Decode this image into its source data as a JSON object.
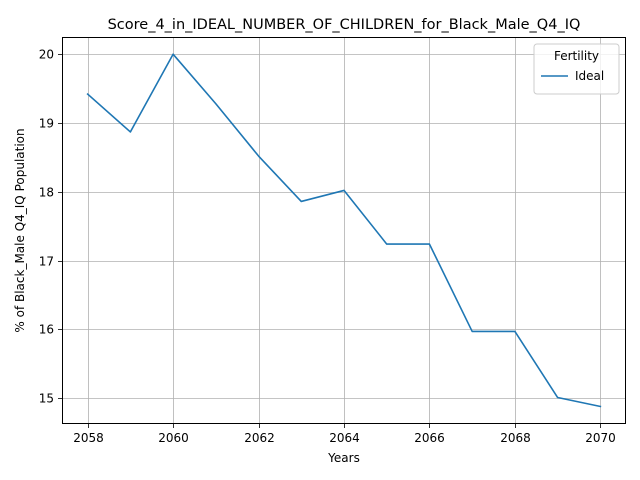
{
  "chart_data": {
    "type": "line",
    "title": "Score_4_in_IDEAL_NUMBER_OF_CHILDREN_for_Black_Male_Q4_IQ",
    "xlabel": "Years",
    "ylabel": "% of Black_Male Q4_IQ Population",
    "xlim": [
      2057.4,
      2070.6
    ],
    "ylim": [
      14.625,
      20.25
    ],
    "xticks": [
      2058,
      2060,
      2062,
      2064,
      2066,
      2068,
      2070
    ],
    "yticks": [
      15,
      16,
      17,
      18,
      19,
      20
    ],
    "grid": true,
    "legend": {
      "title": "Fertility",
      "placement": "top-right"
    },
    "series": [
      {
        "name": "Ideal",
        "color": "#1f77b4",
        "x": [
          2058,
          2059,
          2060,
          2061,
          2062,
          2063,
          2064,
          2065,
          2066,
          2067,
          2068,
          2069,
          2070
        ],
        "y": [
          19.42,
          18.87,
          20.0,
          19.28,
          18.52,
          17.86,
          18.02,
          17.24,
          17.24,
          15.97,
          15.97,
          15.01,
          14.88
        ]
      }
    ]
  }
}
